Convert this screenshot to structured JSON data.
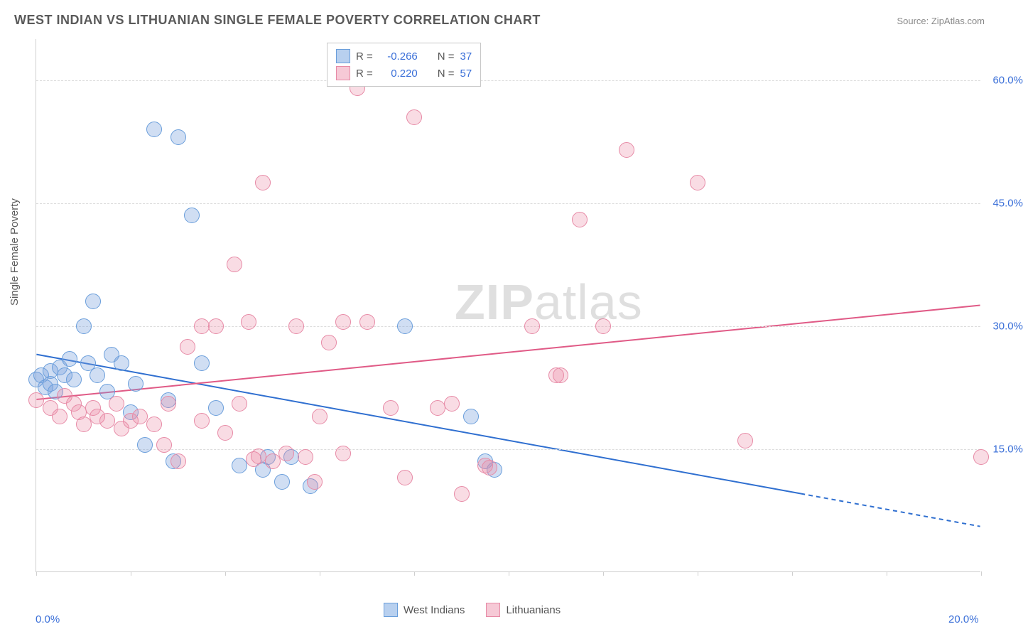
{
  "title": "WEST INDIAN VS LITHUANIAN SINGLE FEMALE POVERTY CORRELATION CHART",
  "source": "Source: ZipAtlas.com",
  "y_axis_label": "Single Female Poverty",
  "watermark_zip": "ZIP",
  "watermark_atlas": "atlas",
  "chart": {
    "type": "scatter",
    "background_color": "#ffffff",
    "grid_color": "#dcdcdc",
    "axis_color": "#cfcfcf",
    "tick_label_color": "#3a6fd8",
    "axis_label_color": "#5a5a5a",
    "title_color": "#5a5a5a",
    "title_fontsize": 18,
    "label_fontsize": 15,
    "xlim": [
      0,
      20
    ],
    "ylim": [
      0,
      65
    ],
    "y_gridlines": [
      15,
      30,
      45,
      60
    ],
    "y_tick_labels": [
      "15.0%",
      "30.0%",
      "45.0%",
      "60.0%"
    ],
    "x_ticks": [
      0,
      2,
      4,
      6,
      8,
      10,
      12,
      14,
      16,
      18,
      20
    ],
    "x_tick_labels": {
      "0": "0.0%",
      "20": "20.0%"
    },
    "marker_radius": 11,
    "marker_opacity": 0.6,
    "series": [
      {
        "name": "West Indians",
        "color_fill": "rgba(120,160,220,0.35)",
        "color_stroke": "#6a9edb",
        "swatch_fill": "#b8d0ef",
        "swatch_stroke": "#6a9edb",
        "R": "-0.266",
        "N": "37",
        "trend": {
          "x1": 0,
          "y1": 26.5,
          "x2": 16.2,
          "y2": 9.5,
          "x2_dashed": 20,
          "y2_dashed": 5.5,
          "color": "#2f6fd0",
          "width": 2
        },
        "points": [
          [
            0.0,
            23.5
          ],
          [
            0.1,
            24.0
          ],
          [
            0.2,
            22.5
          ],
          [
            0.3,
            24.5
          ],
          [
            0.3,
            23.0
          ],
          [
            0.4,
            22.0
          ],
          [
            0.5,
            25.0
          ],
          [
            0.6,
            24.0
          ],
          [
            0.7,
            26.0
          ],
          [
            0.8,
            23.5
          ],
          [
            1.0,
            30.0
          ],
          [
            1.1,
            25.5
          ],
          [
            1.2,
            33.0
          ],
          [
            1.3,
            24.0
          ],
          [
            1.5,
            22.0
          ],
          [
            1.6,
            26.5
          ],
          [
            1.8,
            25.5
          ],
          [
            2.0,
            19.5
          ],
          [
            2.1,
            23.0
          ],
          [
            2.3,
            15.5
          ],
          [
            2.5,
            54.0
          ],
          [
            2.8,
            21.0
          ],
          [
            2.9,
            13.5
          ],
          [
            3.0,
            53.0
          ],
          [
            3.3,
            43.5
          ],
          [
            3.5,
            25.5
          ],
          [
            3.8,
            20.0
          ],
          [
            4.3,
            13.0
          ],
          [
            4.8,
            12.5
          ],
          [
            4.9,
            14.0
          ],
          [
            5.2,
            11.0
          ],
          [
            5.4,
            14.0
          ],
          [
            5.8,
            10.5
          ],
          [
            7.8,
            30.0
          ],
          [
            9.2,
            19.0
          ],
          [
            9.5,
            13.5
          ],
          [
            9.7,
            12.5
          ]
        ]
      },
      {
        "name": "Lithuanians",
        "color_fill": "rgba(235,140,165,0.30)",
        "color_stroke": "#e78aa6",
        "swatch_fill": "#f6c9d6",
        "swatch_stroke": "#e78aa6",
        "R": "0.220",
        "N": "57",
        "trend": {
          "x1": 0,
          "y1": 21.0,
          "x2": 20,
          "y2": 32.5,
          "color": "#e05a86",
          "width": 2
        },
        "points": [
          [
            0.0,
            21.0
          ],
          [
            0.3,
            20.0
          ],
          [
            0.5,
            19.0
          ],
          [
            0.6,
            21.5
          ],
          [
            0.8,
            20.5
          ],
          [
            0.9,
            19.5
          ],
          [
            1.0,
            18.0
          ],
          [
            1.2,
            20.0
          ],
          [
            1.3,
            19.0
          ],
          [
            1.5,
            18.5
          ],
          [
            1.7,
            20.5
          ],
          [
            1.8,
            17.5
          ],
          [
            2.0,
            18.5
          ],
          [
            2.2,
            19.0
          ],
          [
            2.5,
            18.0
          ],
          [
            2.7,
            15.5
          ],
          [
            2.8,
            20.5
          ],
          [
            3.0,
            13.5
          ],
          [
            3.2,
            27.5
          ],
          [
            3.5,
            18.5
          ],
          [
            3.8,
            30.0
          ],
          [
            4.0,
            17.0
          ],
          [
            4.2,
            37.5
          ],
          [
            4.5,
            30.5
          ],
          [
            4.6,
            13.8
          ],
          [
            4.7,
            14.1
          ],
          [
            4.8,
            47.5
          ],
          [
            5.0,
            13.5
          ],
          [
            5.5,
            30.0
          ],
          [
            5.7,
            14.0
          ],
          [
            5.9,
            11.0
          ],
          [
            6.0,
            19.0
          ],
          [
            6.2,
            28.0
          ],
          [
            6.5,
            14.5
          ],
          [
            6.8,
            59.0
          ],
          [
            7.0,
            30.5
          ],
          [
            7.5,
            20.0
          ],
          [
            7.8,
            11.5
          ],
          [
            8.0,
            55.5
          ],
          [
            8.5,
            20.0
          ],
          [
            8.8,
            20.5
          ],
          [
            9.0,
            9.5
          ],
          [
            9.5,
            13.0
          ],
          [
            9.6,
            12.7
          ],
          [
            10.5,
            30.0
          ],
          [
            11.0,
            24.0
          ],
          [
            11.1,
            24.0
          ],
          [
            11.5,
            43.0
          ],
          [
            12.0,
            30.0
          ],
          [
            12.5,
            51.5
          ],
          [
            14.0,
            47.5
          ],
          [
            15.0,
            16.0
          ],
          [
            3.5,
            30.0
          ],
          [
            6.5,
            30.5
          ],
          [
            4.3,
            20.5
          ],
          [
            5.3,
            14.5
          ],
          [
            20.0,
            14.0
          ]
        ]
      }
    ]
  },
  "legend_top": {
    "r_label": "R =",
    "n_label": "N ="
  },
  "legend_bottom": {
    "series1_label": "West Indians",
    "series2_label": "Lithuanians"
  }
}
